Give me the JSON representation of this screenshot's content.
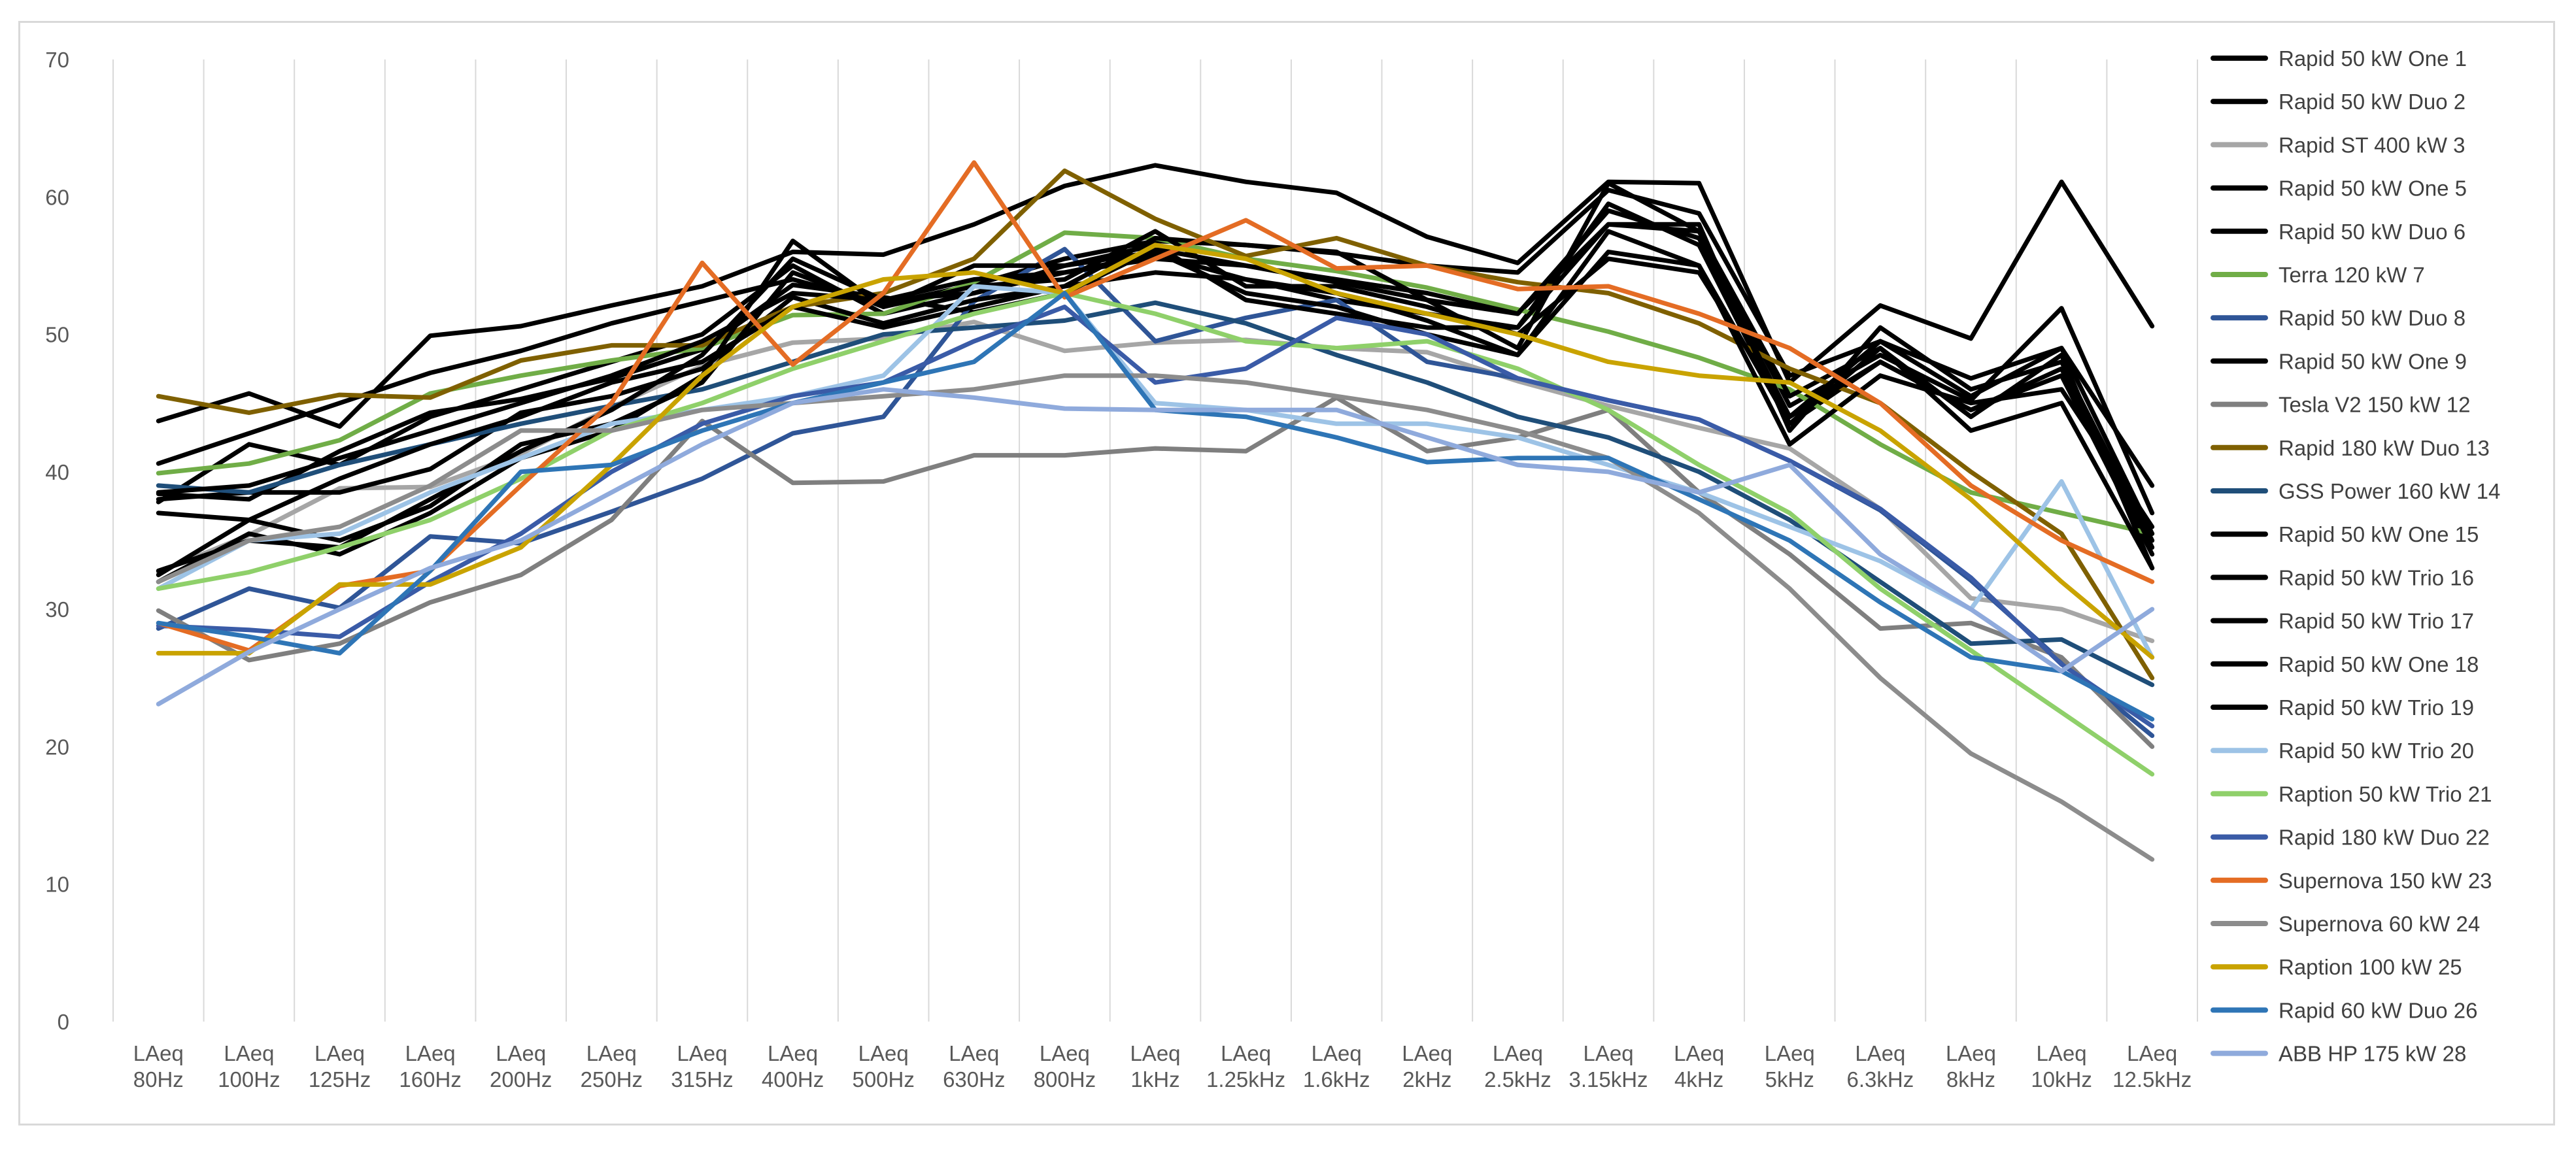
{
  "chart_data": {
    "type": "line",
    "title": "",
    "xlabel": "",
    "ylabel": "",
    "ylim": [
      0,
      70
    ],
    "yticks": [
      0,
      10,
      20,
      30,
      40,
      50,
      60,
      70
    ],
    "grid": "vertical",
    "legend_position": "right",
    "categories": [
      [
        "LAeq",
        "80Hz"
      ],
      [
        "LAeq",
        "100Hz"
      ],
      [
        "LAeq",
        "125Hz"
      ],
      [
        "LAeq",
        "160Hz"
      ],
      [
        "LAeq",
        "200Hz"
      ],
      [
        "LAeq",
        "250Hz"
      ],
      [
        "LAeq",
        "315Hz"
      ],
      [
        "LAeq",
        "400Hz"
      ],
      [
        "LAeq",
        "500Hz"
      ],
      [
        "LAeq",
        "630Hz"
      ],
      [
        "LAeq",
        "800Hz"
      ],
      [
        "LAeq",
        "1kHz"
      ],
      [
        "LAeq",
        "1.25kHz"
      ],
      [
        "LAeq",
        "1.6kHz"
      ],
      [
        "LAeq",
        "2kHz"
      ],
      [
        "LAeq",
        "2.5kHz"
      ],
      [
        "LAeq",
        "3.15kHz"
      ],
      [
        "LAeq",
        "4kHz"
      ],
      [
        "LAeq",
        "5kHz"
      ],
      [
        "LAeq",
        "6.3kHz"
      ],
      [
        "LAeq",
        "8kHz"
      ],
      [
        "LAeq",
        "10kHz"
      ],
      [
        "LAeq",
        "12.5kHz"
      ]
    ],
    "series": [
      {
        "name": "Rapid 50 kW One 1",
        "color": "#000000",
        "values": [
          43.7,
          45.7,
          43.3,
          49.9,
          50.6,
          52.1,
          53.5,
          56.0,
          55.8,
          58.0,
          60.8,
          62.3,
          61.1,
          60.3,
          57.1,
          55.2,
          61.1,
          61.0,
          46.5,
          52.1,
          49.7,
          61.1,
          50.6
        ]
      },
      {
        "name": "Rapid 50 kW Duo 2",
        "color": "#000000",
        "values": [
          40.6,
          42.8,
          45.0,
          47.2,
          48.8,
          50.8,
          52.4,
          54.0,
          52.2,
          53.6,
          55.5,
          56.8,
          56.5,
          55.9,
          55.0,
          54.5,
          60.5,
          58.8,
          47.0,
          49.5,
          46.8,
          49.0,
          39.0
        ]
      },
      {
        "name": "Rapid ST 400 kW 3",
        "color": "#a6a6a6",
        "values": [
          32.7,
          35.4,
          38.8,
          38.9,
          41.3,
          44.7,
          47.7,
          49.4,
          49.7,
          50.9,
          48.8,
          49.4,
          49.6,
          49.0,
          48.7,
          46.6,
          44.8,
          43.2,
          41.7,
          37.3,
          30.8,
          30.0,
          27.7
        ]
      },
      {
        "name": "Rapid 50 kW One 5",
        "color": "#000000",
        "values": [
          38.4,
          38.0,
          41.5,
          44.3,
          45.3,
          46.8,
          48.9,
          53.6,
          52.7,
          51.6,
          53.0,
          56.2,
          55.0,
          53.8,
          52.5,
          51.5,
          58.0,
          57.5,
          44.8,
          48.5,
          45.2,
          51.9,
          37.0
        ]
      },
      {
        "name": "Rapid 50 kW Duo 6",
        "color": "#000000",
        "values": [
          37.8,
          42.0,
          40.5,
          44.0,
          46.0,
          48.0,
          50.0,
          55.0,
          51.5,
          53.0,
          54.5,
          55.8,
          54.0,
          52.5,
          51.5,
          50.5,
          59.5,
          56.5,
          43.5,
          48.0,
          44.5,
          47.0,
          34.0
        ]
      },
      {
        "name": "Terra 120 kW 7",
        "color": "#70ad47",
        "values": [
          39.9,
          40.6,
          42.3,
          45.7,
          47.0,
          48.1,
          49.0,
          51.4,
          51.5,
          53.8,
          57.4,
          57.0,
          55.5,
          54.6,
          53.4,
          51.8,
          50.2,
          48.3,
          46.0,
          42.0,
          38.5,
          37.0,
          35.5
        ]
      },
      {
        "name": "Rapid 50 kW Duo 8",
        "color": "#2f5597",
        "values": [
          28.6,
          31.5,
          30.1,
          35.3,
          34.8,
          37.1,
          39.5,
          42.8,
          44.0,
          52.4,
          56.2,
          49.5,
          51.2,
          52.5,
          48.0,
          46.8,
          45.2,
          43.8,
          40.8,
          37.2,
          32.1,
          26.2,
          20.8
        ]
      },
      {
        "name": "Rapid 50 kW One 9",
        "color": "#000000",
        "values": [
          38.0,
          38.5,
          38.5,
          40.2,
          44.3,
          45.5,
          47.5,
          52.7,
          50.8,
          52.5,
          53.5,
          57.0,
          56.5,
          56.0,
          52.5,
          49.0,
          61.0,
          57.5,
          45.5,
          49.0,
          44.0,
          48.5,
          33.0
        ]
      },
      {
        "name": "Tesla V2 150 kW 12",
        "color": "#7f7f7f",
        "values": [
          29.9,
          26.3,
          27.5,
          30.5,
          32.5,
          36.5,
          43.7,
          39.2,
          39.3,
          41.2,
          41.2,
          41.7,
          41.5,
          45.4,
          41.5,
          42.5,
          44.5,
          38.5,
          34.0,
          28.6,
          29.0,
          26.5,
          20.0
        ]
      },
      {
        "name": "Rapid 180 kW Duo 13",
        "color": "#7f6000",
        "values": [
          45.5,
          44.3,
          45.6,
          45.4,
          48.1,
          49.2,
          49.2,
          52.0,
          53.0,
          55.5,
          61.9,
          58.4,
          55.7,
          57.0,
          55.0,
          53.8,
          53.0,
          50.8,
          47.5,
          45.0,
          40.0,
          35.5,
          25.0
        ]
      },
      {
        "name": "GSS Power 160 kW 14",
        "color": "#1f4e79",
        "values": [
          39.0,
          38.5,
          40.5,
          42.0,
          43.5,
          44.8,
          46.0,
          48.0,
          50.0,
          50.5,
          51.0,
          52.3,
          50.8,
          48.5,
          46.5,
          44.0,
          42.5,
          40.0,
          36.5,
          32.0,
          27.5,
          27.8,
          24.5
        ]
      },
      {
        "name": "Rapid 50 kW One 15",
        "color": "#000000",
        "values": [
          37.0,
          36.5,
          39.5,
          42.0,
          44.0,
          46.5,
          48.0,
          52.0,
          50.5,
          52.0,
          53.5,
          54.5,
          54.0,
          53.0,
          51.0,
          48.5,
          57.5,
          55.0,
          42.0,
          47.0,
          45.0,
          46.0,
          36.0
        ]
      },
      {
        "name": "Rapid 50 kW Trio 16",
        "color": "#000000",
        "values": [
          32.5,
          36.5,
          35.0,
          37.5,
          42.0,
          43.5,
          46.5,
          54.5,
          52.0,
          53.5,
          54.0,
          57.5,
          53.5,
          53.5,
          52.0,
          50.0,
          55.5,
          54.5,
          44.0,
          48.0,
          44.5,
          47.5,
          34.5
        ]
      },
      {
        "name": "Rapid 50 kW Trio 17",
        "color": "#000000",
        "values": [
          32.8,
          35.0,
          34.5,
          38.0,
          41.5,
          44.5,
          48.5,
          55.5,
          52.5,
          53.0,
          55.0,
          56.5,
          52.5,
          51.5,
          50.5,
          50.5,
          58.0,
          58.0,
          43.0,
          50.5,
          46.0,
          48.0,
          35.0
        ]
      },
      {
        "name": "Rapid 50 kW One 18",
        "color": "#000000",
        "values": [
          38.5,
          39.0,
          41.0,
          43.0,
          45.0,
          47.0,
          49.5,
          53.0,
          52.5,
          54.0,
          54.5,
          55.5,
          55.0,
          54.0,
          53.0,
          51.5,
          59.0,
          57.0,
          44.0,
          49.5,
          45.5,
          49.0,
          35.5
        ]
      },
      {
        "name": "Rapid 50 kW Trio 19",
        "color": "#000000",
        "values": [
          32.0,
          35.5,
          34.0,
          37.0,
          41.0,
          43.0,
          47.0,
          56.8,
          52.0,
          55.0,
          55.0,
          56.0,
          53.0,
          52.0,
          50.0,
          48.5,
          56.0,
          55.0,
          43.5,
          49.0,
          43.0,
          45.0,
          33.0
        ]
      },
      {
        "name": "Rapid 50 kW Trio 20",
        "color": "#9dc3e6",
        "values": [
          31.5,
          35.0,
          35.5,
          38.5,
          41.0,
          43.5,
          44.5,
          45.5,
          47.0,
          53.5,
          53.0,
          45.0,
          44.5,
          43.5,
          43.5,
          42.5,
          40.5,
          38.5,
          36.0,
          33.5,
          30.0,
          39.3,
          26.5
        ]
      },
      {
        "name": "Raption 50 kW Trio 21",
        "color": "#8fd06a",
        "values": [
          31.5,
          32.7,
          34.5,
          36.5,
          39.5,
          43.0,
          45.0,
          47.5,
          49.5,
          51.5,
          53.0,
          51.5,
          49.5,
          49.0,
          49.5,
          47.5,
          44.5,
          40.5,
          37.0,
          31.5,
          27.0,
          22.5,
          18.0
        ]
      },
      {
        "name": "Rapid 180 kW Duo 22",
        "color": "#3a5ba7",
        "values": [
          28.8,
          28.5,
          28.0,
          32.0,
          35.5,
          40.0,
          43.5,
          45.5,
          46.5,
          49.5,
          52.0,
          46.5,
          47.5,
          51.2,
          50.0,
          46.8,
          45.2,
          43.8,
          40.8,
          37.3,
          32.3,
          26.0,
          21.5
        ]
      },
      {
        "name": "Supernova 150 kW 23",
        "color": "#e46c24",
        "values": [
          29.0,
          27.0,
          31.7,
          32.8,
          39.0,
          45.0,
          55.2,
          47.8,
          53.0,
          62.5,
          52.7,
          55.5,
          58.3,
          54.8,
          55.0,
          53.3,
          53.5,
          51.5,
          49.0,
          45.0,
          39.0,
          35.0,
          32.0
        ]
      },
      {
        "name": "Supernova 60 kW 24",
        "color": "#8c8c8c",
        "values": [
          32.0,
          35.0,
          36.0,
          39.0,
          43.0,
          43.0,
          44.5,
          45.0,
          45.5,
          46.0,
          47.0,
          47.0,
          46.5,
          45.5,
          44.5,
          43.0,
          41.0,
          37.0,
          31.5,
          25.0,
          19.5,
          16.0,
          11.8
        ]
      },
      {
        "name": "Raption 100 kW 25",
        "color": "#c9a300",
        "values": [
          26.8,
          26.8,
          31.8,
          31.8,
          34.5,
          40.5,
          47.0,
          52.0,
          54.0,
          54.5,
          53.0,
          56.5,
          55.5,
          53.0,
          51.5,
          50.0,
          48.0,
          47.0,
          46.5,
          43.0,
          38.0,
          32.0,
          26.5
        ]
      },
      {
        "name": "Rapid 60 kW Duo 26",
        "color": "#2e75b6",
        "values": [
          29.0,
          28.0,
          26.8,
          32.8,
          40.0,
          40.5,
          43.0,
          45.0,
          46.5,
          48.0,
          53.0,
          44.5,
          44.0,
          42.5,
          40.7,
          41.0,
          41.0,
          38.0,
          35.0,
          30.5,
          26.5,
          25.5,
          22.0
        ]
      },
      {
        "name": "ABB HP 175 kW 28",
        "color": "#8faadc",
        "values": [
          23.1,
          26.9,
          30.0,
          33.0,
          35.0,
          38.5,
          42.0,
          45.0,
          46.0,
          45.4,
          44.6,
          44.5,
          44.5,
          44.5,
          42.5,
          40.5,
          40.0,
          38.5,
          40.5,
          34.0,
          30.0,
          25.5,
          30.0
        ]
      }
    ]
  }
}
